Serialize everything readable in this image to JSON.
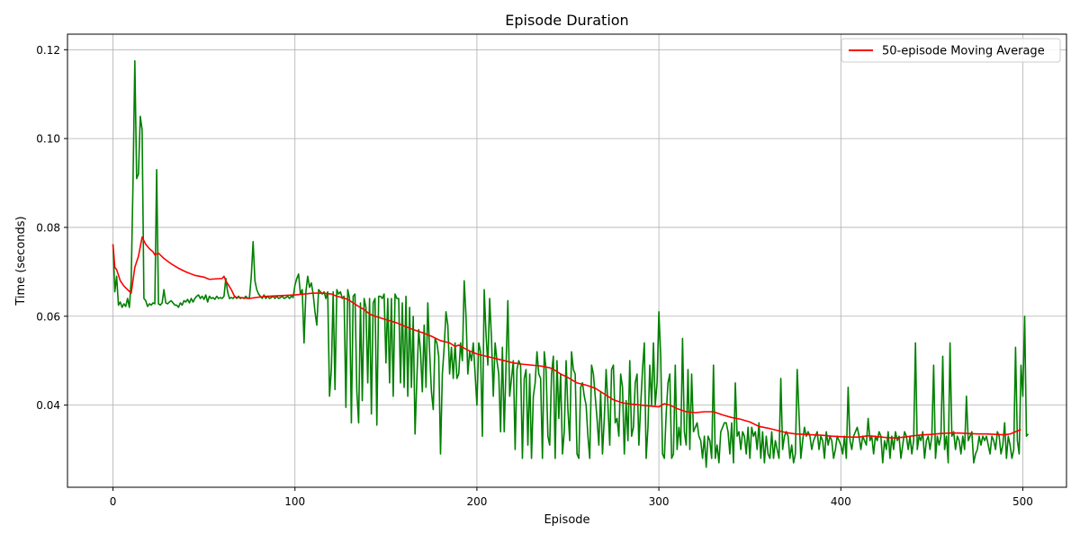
{
  "chart_data": {
    "type": "line",
    "title": "Episode Duration",
    "xlabel": "Episode",
    "ylabel": "Time (seconds)",
    "xlim": [
      -25,
      524
    ],
    "ylim": [
      0.0215,
      0.1235
    ],
    "xticks": [
      0,
      100,
      200,
      300,
      400,
      500
    ],
    "yticks": [
      0.04,
      0.06,
      0.08,
      0.1,
      0.12
    ],
    "xtick_labels": [
      "0",
      "100",
      "200",
      "300",
      "400",
      "500"
    ],
    "ytick_labels": [
      "0.04",
      "0.06",
      "0.08",
      "0.10",
      "0.12"
    ],
    "grid": true,
    "legend": {
      "placement": "top-right"
    },
    "colors": {
      "raw": "#008000",
      "avg": "#ff0000"
    },
    "series": [
      {
        "key": "raw",
        "x_start": 0,
        "x_step": 1,
        "values": [
          0.0762,
          0.0655,
          0.069,
          0.0625,
          0.0632,
          0.062,
          0.0628,
          0.0622,
          0.064,
          0.062,
          0.068,
          0.09,
          0.1175,
          0.091,
          0.092,
          0.105,
          0.102,
          0.064,
          0.0635,
          0.0622,
          0.0628,
          0.0625,
          0.063,
          0.0628,
          0.093,
          0.0628,
          0.0625,
          0.063,
          0.066,
          0.063,
          0.0628,
          0.0632,
          0.0635,
          0.063,
          0.0625,
          0.0625,
          0.062,
          0.063,
          0.0625,
          0.0635,
          0.0632,
          0.0638,
          0.063,
          0.064,
          0.0632,
          0.064,
          0.0645,
          0.0648,
          0.064,
          0.0645,
          0.0638,
          0.0648,
          0.0632,
          0.0645,
          0.064,
          0.0642,
          0.0638,
          0.0645,
          0.064,
          0.0642,
          0.064,
          0.0645,
          0.0685,
          0.0655,
          0.064,
          0.0642,
          0.064,
          0.0645,
          0.064,
          0.0645,
          0.064,
          0.0642,
          0.064,
          0.0645,
          0.064,
          0.0642,
          0.069,
          0.0768,
          0.068,
          0.066,
          0.065,
          0.0645,
          0.064,
          0.0648,
          0.064,
          0.0645,
          0.064,
          0.0642,
          0.0645,
          0.064,
          0.0645,
          0.064,
          0.0642,
          0.0645,
          0.064,
          0.0642,
          0.0645,
          0.064,
          0.0645,
          0.0642,
          0.067,
          0.0685,
          0.0695,
          0.065,
          0.066,
          0.054,
          0.0655,
          0.069,
          0.0665,
          0.0675,
          0.065,
          0.061,
          0.058,
          0.066,
          0.0655,
          0.065,
          0.0655,
          0.064,
          0.0655,
          0.042,
          0.048,
          0.0655,
          0.0435,
          0.066,
          0.065,
          0.0655,
          0.064,
          0.0645,
          0.0395,
          0.066,
          0.064,
          0.036,
          0.0645,
          0.065,
          0.043,
          0.036,
          0.063,
          0.041,
          0.064,
          0.062,
          0.045,
          0.064,
          0.038,
          0.063,
          0.064,
          0.0355,
          0.0645,
          0.0645,
          0.064,
          0.065,
          0.0495,
          0.064,
          0.045,
          0.064,
          0.042,
          0.065,
          0.064,
          0.064,
          0.045,
          0.063,
          0.044,
          0.0645,
          0.042,
          0.062,
          0.044,
          0.06,
          0.0335,
          0.046,
          0.057,
          0.052,
          0.043,
          0.058,
          0.044,
          0.063,
          0.052,
          0.043,
          0.039,
          0.055,
          0.054,
          0.051,
          0.029,
          0.047,
          0.053,
          0.061,
          0.058,
          0.047,
          0.053,
          0.046,
          0.054,
          0.046,
          0.047,
          0.054,
          0.05,
          0.068,
          0.06,
          0.047,
          0.052,
          0.05,
          0.054,
          0.047,
          0.04,
          0.054,
          0.052,
          0.033,
          0.066,
          0.056,
          0.049,
          0.064,
          0.055,
          0.042,
          0.054,
          0.05,
          0.047,
          0.034,
          0.053,
          0.034,
          0.049,
          0.0635,
          0.042,
          0.046,
          0.05,
          0.03,
          0.048,
          0.05,
          0.049,
          0.028,
          0.046,
          0.048,
          0.031,
          0.047,
          0.028,
          0.042,
          0.045,
          0.052,
          0.047,
          0.046,
          0.028,
          0.052,
          0.048,
          0.033,
          0.031,
          0.047,
          0.051,
          0.028,
          0.05,
          0.037,
          0.047,
          0.029,
          0.034,
          0.05,
          0.039,
          0.032,
          0.052,
          0.048,
          0.047,
          0.029,
          0.028,
          0.044,
          0.045,
          0.042,
          0.04,
          0.033,
          0.028,
          0.049,
          0.047,
          0.042,
          0.037,
          0.031,
          0.043,
          0.029,
          0.037,
          0.048,
          0.04,
          0.031,
          0.048,
          0.049,
          0.036,
          0.037,
          0.033,
          0.047,
          0.044,
          0.029,
          0.041,
          0.032,
          0.05,
          0.033,
          0.035,
          0.045,
          0.047,
          0.031,
          0.04,
          0.048,
          0.054,
          0.028,
          0.035,
          0.049,
          0.04,
          0.054,
          0.04,
          0.045,
          0.061,
          0.051,
          0.029,
          0.028,
          0.038,
          0.045,
          0.047,
          0.028,
          0.029,
          0.049,
          0.03,
          0.035,
          0.031,
          0.055,
          0.034,
          0.031,
          0.048,
          0.03,
          0.047,
          0.034,
          0.035,
          0.036,
          0.033,
          0.032,
          0.028,
          0.033,
          0.026,
          0.033,
          0.032,
          0.028,
          0.049,
          0.028,
          0.031,
          0.027,
          0.034,
          0.035,
          0.036,
          0.036,
          0.034,
          0.029,
          0.036,
          0.027,
          0.045,
          0.033,
          0.034,
          0.03,
          0.034,
          0.033,
          0.029,
          0.035,
          0.028,
          0.035,
          0.033,
          0.034,
          0.03,
          0.036,
          0.028,
          0.034,
          0.027,
          0.033,
          0.029,
          0.028,
          0.034,
          0.028,
          0.032,
          0.03,
          0.028,
          0.046,
          0.03,
          0.033,
          0.034,
          0.033,
          0.028,
          0.031,
          0.027,
          0.029,
          0.048,
          0.038,
          0.028,
          0.032,
          0.035,
          0.033,
          0.034,
          0.033,
          0.03,
          0.032,
          0.033,
          0.034,
          0.03,
          0.033,
          0.032,
          0.028,
          0.034,
          0.031,
          0.033,
          0.032,
          0.028,
          0.03,
          0.033,
          0.032,
          0.031,
          0.029,
          0.033,
          0.028,
          0.044,
          0.032,
          0.03,
          0.033,
          0.034,
          0.035,
          0.033,
          0.03,
          0.033,
          0.032,
          0.031,
          0.037,
          0.032,
          0.033,
          0.029,
          0.033,
          0.032,
          0.034,
          0.033,
          0.027,
          0.032,
          0.03,
          0.034,
          0.028,
          0.033,
          0.03,
          0.034,
          0.032,
          0.033,
          0.028,
          0.031,
          0.034,
          0.033,
          0.03,
          0.033,
          0.029,
          0.032,
          0.054,
          0.03,
          0.033,
          0.032,
          0.034,
          0.028,
          0.032,
          0.033,
          0.03,
          0.033,
          0.049,
          0.028,
          0.033,
          0.031,
          0.033,
          0.051,
          0.03,
          0.033,
          0.027,
          0.054,
          0.033,
          0.034,
          0.03,
          0.033,
          0.032,
          0.029,
          0.033,
          0.03,
          0.042,
          0.032,
          0.033,
          0.034,
          0.027,
          0.029,
          0.03,
          0.033,
          0.031,
          0.033,
          0.032,
          0.033,
          0.031,
          0.029,
          0.033,
          0.032,
          0.03,
          0.034,
          0.033,
          0.029,
          0.031,
          0.036,
          0.028,
          0.033,
          0.031,
          0.028,
          0.03,
          0.053,
          0.032,
          0.029,
          0.049,
          0.042,
          0.06,
          0.033,
          0.0335
        ]
      },
      {
        "key": "avg",
        "name": "50-episode Moving Average",
        "points": [
          [
            0,
            0.0762
          ],
          [
            1,
            0.071
          ],
          [
            2,
            0.0705
          ],
          [
            4,
            0.068
          ],
          [
            6,
            0.0668
          ],
          [
            8,
            0.066
          ],
          [
            10,
            0.0652
          ],
          [
            12,
            0.071
          ],
          [
            14,
            0.0735
          ],
          [
            16,
            0.0778
          ],
          [
            18,
            0.0762
          ],
          [
            20,
            0.0752
          ],
          [
            22,
            0.0745
          ],
          [
            23,
            0.0738
          ],
          [
            25,
            0.0742
          ],
          [
            28,
            0.073
          ],
          [
            32,
            0.0718
          ],
          [
            36,
            0.0708
          ],
          [
            40,
            0.07
          ],
          [
            45,
            0.0692
          ],
          [
            50,
            0.0688
          ],
          [
            53,
            0.0683
          ],
          [
            56,
            0.0684
          ],
          [
            60,
            0.0685
          ],
          [
            61,
            0.069
          ],
          [
            62,
            0.068
          ],
          [
            65,
            0.066
          ],
          [
            67,
            0.0643
          ],
          [
            70,
            0.0642
          ],
          [
            75,
            0.064
          ],
          [
            80,
            0.0643
          ],
          [
            85,
            0.0645
          ],
          [
            90,
            0.0646
          ],
          [
            95,
            0.0647
          ],
          [
            100,
            0.0648
          ],
          [
            105,
            0.065
          ],
          [
            110,
            0.0652
          ],
          [
            115,
            0.0652
          ],
          [
            120,
            0.065
          ],
          [
            123,
            0.0645
          ],
          [
            126,
            0.0642
          ],
          [
            129,
            0.0638
          ],
          [
            132,
            0.063
          ],
          [
            135,
            0.0622
          ],
          [
            138,
            0.0615
          ],
          [
            141,
            0.0605
          ],
          [
            144,
            0.06
          ],
          [
            148,
            0.0595
          ],
          [
            152,
            0.059
          ],
          [
            156,
            0.0585
          ],
          [
            160,
            0.0578
          ],
          [
            165,
            0.057
          ],
          [
            170,
            0.0563
          ],
          [
            175,
            0.0555
          ],
          [
            180,
            0.0545
          ],
          [
            185,
            0.054
          ],
          [
            188,
            0.0532
          ],
          [
            190,
            0.0535
          ],
          [
            193,
            0.0528
          ],
          [
            196,
            0.0522
          ],
          [
            200,
            0.0515
          ],
          [
            205,
            0.051
          ],
          [
            210,
            0.0505
          ],
          [
            215,
            0.05
          ],
          [
            220,
            0.0495
          ],
          [
            225,
            0.0492
          ],
          [
            230,
            0.049
          ],
          [
            235,
            0.0488
          ],
          [
            240,
            0.0484
          ],
          [
            243,
            0.0478
          ],
          [
            246,
            0.047
          ],
          [
            250,
            0.0462
          ],
          [
            255,
            0.045
          ],
          [
            260,
            0.0445
          ],
          [
            265,
            0.0438
          ],
          [
            270,
            0.0425
          ],
          [
            275,
            0.0412
          ],
          [
            280,
            0.0405
          ],
          [
            285,
            0.0402
          ],
          [
            290,
            0.04
          ],
          [
            295,
            0.0398
          ],
          [
            300,
            0.0396
          ],
          [
            303,
            0.0403
          ],
          [
            306,
            0.04
          ],
          [
            310,
            0.0392
          ],
          [
            315,
            0.0385
          ],
          [
            320,
            0.0383
          ],
          [
            325,
            0.0385
          ],
          [
            330,
            0.0385
          ],
          [
            335,
            0.0378
          ],
          [
            340,
            0.0372
          ],
          [
            345,
            0.0368
          ],
          [
            350,
            0.0362
          ],
          [
            355,
            0.0352
          ],
          [
            360,
            0.0348
          ],
          [
            365,
            0.0343
          ],
          [
            370,
            0.0338
          ],
          [
            375,
            0.0335
          ],
          [
            380,
            0.0334
          ],
          [
            385,
            0.0333
          ],
          [
            390,
            0.0332
          ],
          [
            395,
            0.033
          ],
          [
            400,
            0.0329
          ],
          [
            405,
            0.0328
          ],
          [
            410,
            0.0328
          ],
          [
            415,
            0.0331
          ],
          [
            420,
            0.0329
          ],
          [
            425,
            0.0327
          ],
          [
            430,
            0.0326
          ],
          [
            435,
            0.0328
          ],
          [
            440,
            0.0331
          ],
          [
            445,
            0.0333
          ],
          [
            450,
            0.0334
          ],
          [
            455,
            0.0336
          ],
          [
            460,
            0.0337
          ],
          [
            465,
            0.0337
          ],
          [
            470,
            0.0336
          ],
          [
            475,
            0.0335
          ],
          [
            480,
            0.0335
          ],
          [
            485,
            0.0334
          ],
          [
            490,
            0.0333
          ],
          [
            493,
            0.0335
          ],
          [
            496,
            0.034
          ],
          [
            499,
            0.0345
          ]
        ]
      }
    ]
  }
}
